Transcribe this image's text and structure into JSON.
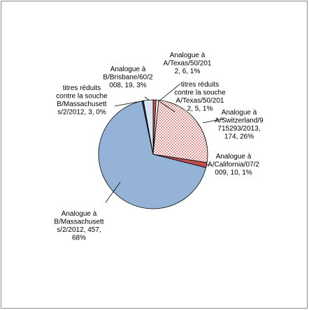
{
  "chart_data": {
    "type": "pie",
    "title": "",
    "legend": "none",
    "slices": [
      {
        "label": "Analogue à A/Texas/50/2012",
        "value": 6,
        "percent": 1,
        "color": "#c0504d",
        "fill": "solid",
        "label_lines": [
          "Analogue à",
          "A/Texas/50/201",
          "2, 6, 1%"
        ]
      },
      {
        "label": "titres réduits contre la souche A/Texas/50/2012",
        "value": 5,
        "percent": 1,
        "color": "#ffffff",
        "fill": "solid",
        "label_lines": [
          "titres réduits",
          "contre la souche",
          "A/Texas/50/201",
          "2, 5, 1%"
        ]
      },
      {
        "label": "Analogue à A/Switzerland/9715293/2013",
        "value": 174,
        "percent": 26,
        "color": "#c0504d",
        "fill": "checker",
        "label_lines": [
          "Analogue à",
          "A/Switzerland/9",
          "715293/2013,",
          "174, 26%"
        ]
      },
      {
        "label": "Analogue à A/California/07/2009",
        "value": 10,
        "percent": 1,
        "color": "#c0504d",
        "fill": "solid",
        "label_lines": [
          "Analogue à",
          "A/California/07/2",
          "009, 10, 1%"
        ]
      },
      {
        "label": "Analogue à B/Massachusetts/2/2012",
        "value": 457,
        "percent": 68,
        "color": "#95b3d7",
        "fill": "solid",
        "label_lines": [
          "Analogue à",
          "B/Massachusett",
          "s/2/2012, 457,",
          "68%"
        ]
      },
      {
        "label": "titres réduits contre la souche B/Massachusetts/2/2012",
        "value": 3,
        "percent": 0,
        "color": "#1f3864",
        "fill": "solid",
        "label_lines": [
          "titres réduits",
          "contre la souche",
          "B/Massachusett",
          "s/2/2012, 3, 0%"
        ]
      },
      {
        "label": "Analogue à B/Brisbane/60/2008",
        "value": 19,
        "percent": 3,
        "color": "#dce6f2",
        "fill": "solid",
        "label_lines": [
          "Analogue à",
          "B/Brisbane/60/2",
          "008, 19, 3%"
        ]
      }
    ]
  }
}
